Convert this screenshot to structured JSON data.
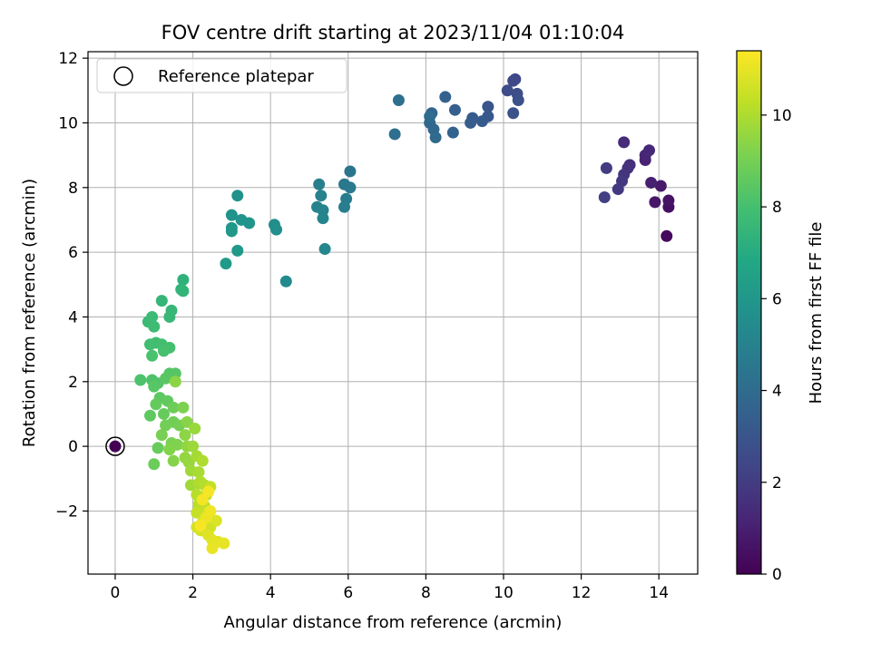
{
  "chart_data": {
    "type": "scatter",
    "title": "FOV centre drift starting at 2023/11/04 01:10:04",
    "xlabel": "Angular distance from reference (arcmin)",
    "ylabel": "Rotation from reference (arcmin)",
    "xlim": [
      -0.7,
      15.0
    ],
    "ylim": [
      -3.95,
      12.2
    ],
    "xticks": [
      0,
      2,
      4,
      6,
      8,
      10,
      12,
      14
    ],
    "yticks": [
      -2,
      0,
      2,
      4,
      6,
      8,
      10,
      12
    ],
    "grid": true,
    "legend": {
      "position": "top-left",
      "entries": [
        "Reference platepar"
      ]
    },
    "colorbar": {
      "label": "Hours from first FF file",
      "colormap": "viridis",
      "range": [
        0,
        11.4
      ],
      "ticks": [
        0,
        2,
        4,
        6,
        8,
        10
      ]
    },
    "reference_point": {
      "x": 0,
      "y": 0
    },
    "points": [
      [
        0,
        0,
        0
      ],
      [
        14.2,
        6.5,
        0.3
      ],
      [
        14.25,
        7.4,
        0.5
      ],
      [
        14.25,
        7.6,
        0.6
      ],
      [
        13.9,
        7.55,
        0.7
      ],
      [
        14.05,
        8.05,
        0.8
      ],
      [
        13.8,
        8.15,
        1.0
      ],
      [
        13.65,
        8.85,
        1.1
      ],
      [
        13.65,
        9.0,
        1.2
      ],
      [
        13.75,
        9.15,
        1.3
      ],
      [
        13.1,
        9.4,
        1.4
      ],
      [
        13.25,
        8.7,
        1.5
      ],
      [
        13.2,
        8.6,
        1.6
      ],
      [
        13.1,
        8.4,
        1.7
      ],
      [
        13.05,
        8.2,
        1.8
      ],
      [
        12.95,
        7.95,
        1.9
      ],
      [
        12.65,
        8.6,
        2.0
      ],
      [
        12.6,
        7.7,
        2.1
      ],
      [
        10.3,
        11.35,
        2.4
      ],
      [
        10.25,
        11.3,
        2.5
      ],
      [
        10.1,
        11.0,
        2.6
      ],
      [
        10.35,
        10.9,
        2.7
      ],
      [
        10.38,
        10.7,
        2.8
      ],
      [
        10.25,
        10.3,
        2.9
      ],
      [
        9.6,
        10.5,
        3.0
      ],
      [
        9.6,
        10.2,
        3.1
      ],
      [
        9.45,
        10.05,
        3.2
      ],
      [
        9.2,
        10.15,
        3.3
      ],
      [
        9.15,
        10.0,
        3.35
      ],
      [
        8.75,
        10.4,
        3.4
      ],
      [
        8.5,
        10.8,
        3.5
      ],
      [
        8.7,
        9.7,
        3.6
      ],
      [
        8.15,
        10.3,
        3.7
      ],
      [
        8.1,
        10.0,
        3.8
      ],
      [
        8.2,
        9.8,
        3.85
      ],
      [
        8.25,
        9.55,
        3.9
      ],
      [
        8.1,
        10.2,
        4.0
      ],
      [
        7.2,
        9.65,
        4.1
      ],
      [
        7.3,
        10.7,
        4.2
      ],
      [
        6.05,
        8.5,
        4.4
      ],
      [
        5.9,
        8.1,
        4.5
      ],
      [
        6.05,
        8.0,
        4.6
      ],
      [
        5.95,
        7.65,
        4.7
      ],
      [
        5.9,
        7.4,
        4.8
      ],
      [
        5.25,
        8.1,
        4.9
      ],
      [
        5.3,
        7.75,
        5.0
      ],
      [
        5.2,
        7.4,
        5.05
      ],
      [
        5.35,
        7.3,
        5.1
      ],
      [
        5.35,
        7.05,
        5.15
      ],
      [
        5.4,
        6.1,
        5.2
      ],
      [
        4.4,
        5.1,
        5.4
      ],
      [
        4.1,
        6.85,
        5.5
      ],
      [
        4.15,
        6.7,
        5.6
      ],
      [
        3.15,
        7.75,
        5.7
      ],
      [
        3.0,
        7.15,
        5.8
      ],
      [
        3.25,
        7.0,
        5.85
      ],
      [
        3.45,
        6.9,
        5.9
      ],
      [
        3.0,
        6.75,
        6.0
      ],
      [
        3.0,
        6.65,
        6.05
      ],
      [
        3.15,
        6.05,
        6.1
      ],
      [
        2.85,
        5.65,
        6.2
      ],
      [
        1.75,
        5.15,
        7.3
      ],
      [
        1.7,
        4.85,
        7.4
      ],
      [
        1.75,
        4.8,
        7.45
      ],
      [
        1.2,
        4.5,
        7.5
      ],
      [
        1.45,
        4.2,
        7.55
      ],
      [
        1.4,
        4.0,
        7.6
      ],
      [
        0.85,
        3.85,
        7.7
      ],
      [
        0.95,
        4.0,
        7.75
      ],
      [
        1.0,
        3.7,
        7.8
      ],
      [
        1.05,
        3.2,
        7.85
      ],
      [
        0.9,
        3.15,
        7.9
      ],
      [
        1.2,
        3.15,
        7.95
      ],
      [
        1.4,
        3.05,
        8.0
      ],
      [
        1.25,
        2.95,
        8.05
      ],
      [
        0.95,
        2.8,
        8.1
      ],
      [
        0.65,
        2.05,
        8.15
      ],
      [
        0.95,
        2.05,
        8.2
      ],
      [
        1.1,
        1.95,
        8.25
      ],
      [
        1.4,
        2.25,
        8.3
      ],
      [
        1.55,
        2.25,
        8.35
      ],
      [
        1.0,
        1.85,
        8.4
      ],
      [
        1.3,
        2.1,
        8.45
      ],
      [
        1.15,
        1.5,
        8.5
      ],
      [
        0.9,
        0.95,
        8.55
      ],
      [
        1.35,
        1.4,
        8.6
      ],
      [
        1.05,
        1.3,
        8.65
      ],
      [
        1.25,
        1.0,
        8.7
      ],
      [
        1.1,
        -0.05,
        8.75
      ],
      [
        1.0,
        -0.55,
        8.8
      ],
      [
        1.5,
        1.2,
        8.85
      ],
      [
        1.5,
        0.75,
        8.9
      ],
      [
        1.3,
        0.65,
        8.95
      ],
      [
        1.65,
        0.65,
        9.0
      ],
      [
        1.2,
        0.35,
        9.05
      ],
      [
        1.45,
        0.1,
        9.1
      ],
      [
        1.75,
        1.2,
        9.15
      ],
      [
        1.6,
        0.05,
        9.2
      ],
      [
        1.4,
        -0.1,
        9.25
      ],
      [
        1.5,
        -0.45,
        9.3
      ],
      [
        1.85,
        0.75,
        9.35
      ],
      [
        1.55,
        2.0,
        9.4
      ],
      [
        1.8,
        0.35,
        9.45
      ],
      [
        1.85,
        0.0,
        9.5
      ],
      [
        1.8,
        -0.35,
        9.55
      ],
      [
        1.9,
        -0.5,
        9.6
      ],
      [
        2.05,
        0.55,
        9.65
      ],
      [
        2.0,
        0.0,
        9.7
      ],
      [
        1.95,
        -0.75,
        9.75
      ],
      [
        1.95,
        -1.2,
        9.8
      ],
      [
        2.1,
        -0.3,
        9.85
      ],
      [
        2.15,
        -0.8,
        9.9
      ],
      [
        2.15,
        -1.15,
        9.95
      ],
      [
        2.25,
        -0.45,
        10.0
      ],
      [
        2.2,
        -1.1,
        10.05
      ],
      [
        2.3,
        -1.2,
        10.1
      ],
      [
        2.1,
        -1.5,
        10.15
      ],
      [
        2.35,
        -1.5,
        10.2
      ],
      [
        2.15,
        -1.8,
        10.25
      ],
      [
        2.3,
        -1.85,
        10.3
      ],
      [
        2.45,
        -1.25,
        10.35
      ],
      [
        2.1,
        -2.05,
        10.4
      ],
      [
        2.35,
        -2.05,
        10.45
      ],
      [
        2.5,
        -2.3,
        10.5
      ],
      [
        2.25,
        -2.35,
        10.55
      ],
      [
        2.45,
        -2.5,
        10.6
      ],
      [
        2.1,
        -2.5,
        10.65
      ],
      [
        2.2,
        -2.6,
        10.7
      ],
      [
        2.3,
        -2.25,
        10.75
      ],
      [
        2.6,
        -2.3,
        10.8
      ],
      [
        2.4,
        -2.75,
        10.85
      ],
      [
        2.5,
        -2.9,
        10.9
      ],
      [
        2.65,
        -2.95,
        10.95
      ],
      [
        2.8,
        -3.0,
        11.0
      ],
      [
        2.5,
        -3.15,
        11.05
      ],
      [
        2.35,
        -2.2,
        11.1
      ],
      [
        2.45,
        -2.0,
        11.15
      ],
      [
        2.25,
        -1.65,
        11.2
      ],
      [
        2.4,
        -1.4,
        11.25
      ],
      [
        2.2,
        -2.45,
        11.3
      ]
    ]
  }
}
